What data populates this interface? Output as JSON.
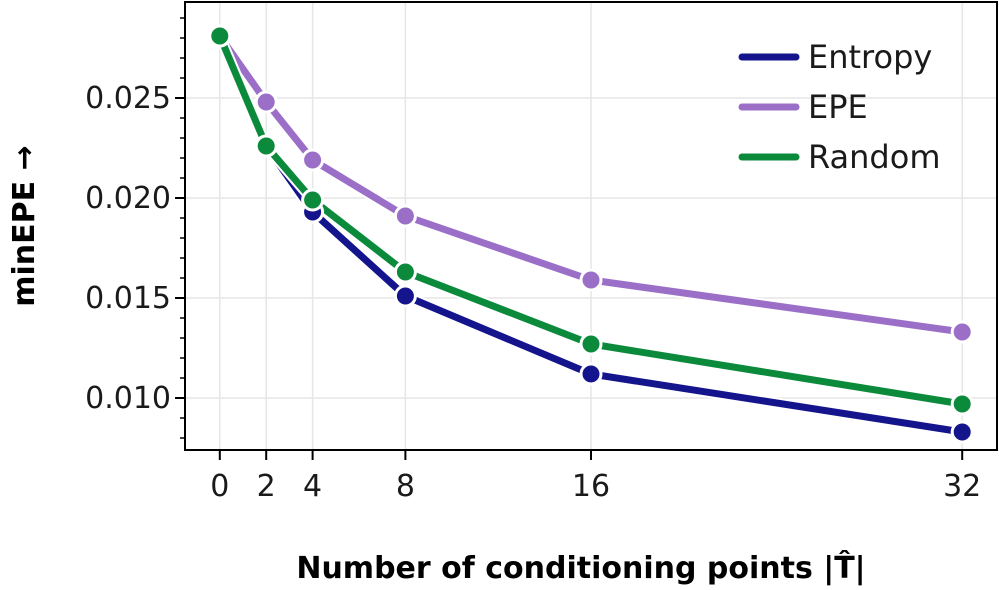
{
  "chart_data": {
    "type": "line",
    "xlabel": "Number of conditioning points |T̂|",
    "ylabel": "minEPE →",
    "x": [
      0,
      2,
      4,
      8,
      16,
      32
    ],
    "x_ticks": [
      "0",
      "2",
      "4",
      "8",
      "16",
      "32"
    ],
    "y_ticks": [
      0.01,
      0.015,
      0.02,
      0.025
    ],
    "y_tick_labels": [
      "0.010",
      "0.015",
      "0.020",
      "0.025"
    ],
    "xlim": [
      -1.5,
      33.5
    ],
    "ylim": [
      0.0074,
      0.0298
    ],
    "grid": true,
    "legend_position": "top-right",
    "series": [
      {
        "name": "Entropy",
        "color": "#14148c",
        "values": [
          0.0281,
          0.0226,
          0.0193,
          0.0151,
          0.0112,
          0.0083
        ]
      },
      {
        "name": "EPE",
        "color": "#9b6fc8",
        "values": [
          0.0281,
          0.0248,
          0.0219,
          0.0191,
          0.0159,
          0.0133
        ]
      },
      {
        "name": "Random",
        "color": "#0b8a3c",
        "values": [
          0.0281,
          0.0226,
          0.0199,
          0.0163,
          0.0127,
          0.0097
        ]
      }
    ]
  }
}
